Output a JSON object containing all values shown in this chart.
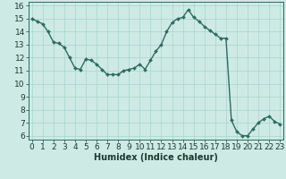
{
  "xlabel": "Humidex (Indice chaleur)",
  "x": [
    0,
    0.5,
    1,
    1.5,
    2,
    2.5,
    3,
    3.5,
    4,
    4.5,
    5,
    5.5,
    6,
    6.5,
    7,
    7.5,
    8,
    8.5,
    9,
    9.5,
    10,
    10.5,
    11,
    11.5,
    12,
    12.5,
    13,
    13.5,
    14,
    14.5,
    15,
    15.5,
    16,
    16.5,
    17,
    17.5,
    18,
    18.5,
    19,
    19.5,
    20,
    20.5,
    21,
    21.5,
    22,
    22.5,
    23
  ],
  "y": [
    15.0,
    14.8,
    14.6,
    14.0,
    13.2,
    13.1,
    12.8,
    12.0,
    11.2,
    11.1,
    11.9,
    11.8,
    11.5,
    11.1,
    10.7,
    10.7,
    10.7,
    11.0,
    11.1,
    11.2,
    11.5,
    11.1,
    11.8,
    12.5,
    13.0,
    14.0,
    14.7,
    15.0,
    15.1,
    15.7,
    15.1,
    14.8,
    14.4,
    14.1,
    13.8,
    13.5,
    13.5,
    7.2,
    6.3,
    6.0,
    6.0,
    6.5,
    7.0,
    7.3,
    7.5,
    7.1,
    6.9
  ],
  "xlim": [
    -0.3,
    23.3
  ],
  "ylim": [
    5.7,
    16.3
  ],
  "yticks": [
    6,
    7,
    8,
    9,
    10,
    11,
    12,
    13,
    14,
    15,
    16
  ],
  "xticks": [
    0,
    1,
    2,
    3,
    4,
    5,
    6,
    7,
    8,
    9,
    10,
    11,
    12,
    13,
    14,
    15,
    16,
    17,
    18,
    19,
    20,
    21,
    22,
    23
  ],
  "line_color": "#2e6b5e",
  "marker": "D",
  "marker_size": 2.0,
  "bg_color": "#ceeae4",
  "grid_color": "#a8d5cc",
  "text_color": "#1a3a30",
  "xlabel_fontsize": 7,
  "tick_fontsize": 6.5,
  "line_width": 1.0
}
